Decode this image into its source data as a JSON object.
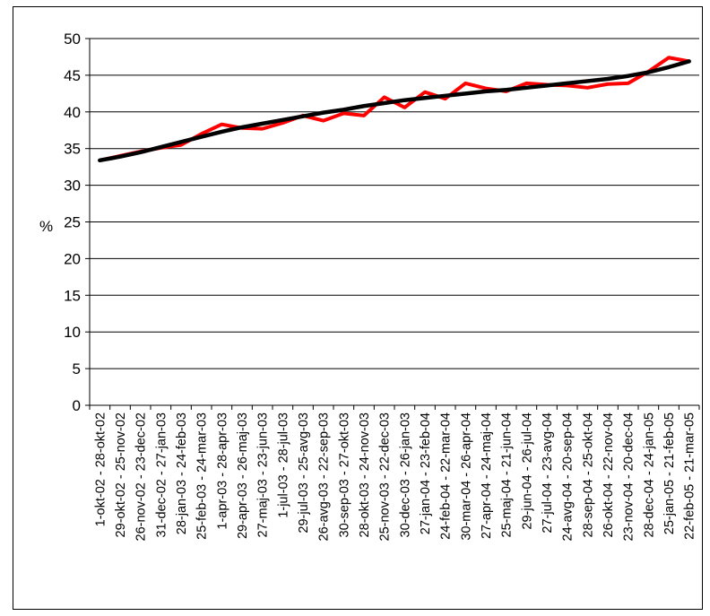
{
  "chart_data": {
    "type": "line",
    "title": "",
    "ylabel": "%",
    "xlabel": "",
    "ylim": [
      0,
      50
    ],
    "yticks": [
      0,
      5,
      10,
      15,
      20,
      25,
      30,
      35,
      40,
      45,
      50
    ],
    "grid": true,
    "legend": "none",
    "categories": [
      "1-okt-02 - 28-okt-02",
      "29-okt-02 - 25-nov-02",
      "26-nov-02 - 23-dec-02",
      "31-dec-02 - 27-jan-03",
      "28-jan-03 - 24-feb-03",
      "25-feb-03 - 24-mar-03",
      "1-apr-03 - 28-apr-03",
      "29-apr-03 - 26-maj-03",
      "27-maj-03 - 23-jun-03",
      "1-jul-03 - 28-jul-03",
      "29-jul-03 - 25-avg-03",
      "26-avg-03 - 22-sep-03",
      "30-sep-03 - 27-okt-03",
      "28-okt-03 - 24-nov-03",
      "25-nov-03 - 22-dec-03",
      "30-dec-03 - 26-jan-03",
      "27-jan-04 - 23-feb-04",
      "24-feb-04 - 22-mar-04",
      "30-mar-04 - 26-apr-04",
      "27-apr-04 - 24-maj-04",
      "25-maj-04 - 21-jun-04",
      "29-jun-04 - 26-jul-04",
      "27-jul-04 - 23-avg-04",
      "24-avg-04 - 20-sep-04",
      "28-sep-04 - 25-okt-04",
      "26-okt-04 - 22-nov-04",
      "23-nov-04 - 20-dec-04",
      "28-dec-04 - 24-jan-05",
      "25-jan-05 - 21-feb-05",
      "22-feb-05 - 21-mar-05"
    ],
    "series": [
      {
        "color": "#ff0000",
        "values": [
          33.4,
          34.0,
          34.6,
          35.1,
          35.5,
          37.0,
          38.3,
          37.8,
          37.7,
          38.5,
          39.5,
          38.8,
          39.8,
          39.5,
          42.0,
          40.6,
          42.7,
          41.8,
          43.9,
          43.2,
          42.8,
          43.9,
          43.7,
          43.6,
          43.3,
          43.8,
          43.9,
          45.5,
          47.4,
          46.9
        ]
      },
      {
        "color": "#000000",
        "values": [
          33.4,
          33.9,
          34.5,
          35.2,
          35.9,
          36.6,
          37.3,
          37.9,
          38.4,
          38.9,
          39.4,
          39.9,
          40.3,
          40.8,
          41.2,
          41.6,
          41.9,
          42.2,
          42.5,
          42.8,
          43.0,
          43.3,
          43.6,
          43.9,
          44.2,
          44.5,
          44.9,
          45.4,
          46.1,
          46.9
        ]
      }
    ]
  }
}
